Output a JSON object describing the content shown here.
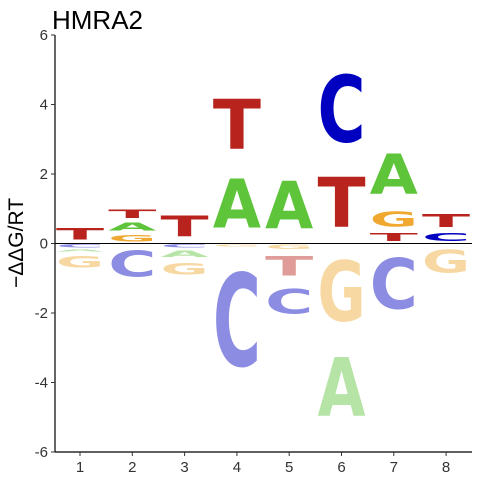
{
  "chart_data": {
    "type": "sequence-logo",
    "title": "HMRA2",
    "xlabel": "",
    "ylabel": "−ΔΔG/RT",
    "ylim": [
      -6,
      6
    ],
    "y_ticks": [
      "-6",
      "-4",
      "-2",
      "0",
      "2",
      "4",
      "6"
    ],
    "x_ticks": [
      "1",
      "2",
      "3",
      "4",
      "5",
      "6",
      "7",
      "8"
    ],
    "grid": false,
    "colors": {
      "A": "#5ec43a",
      "C": "#0000c0",
      "G": "#f0a830",
      "T": "#b8231d"
    },
    "positions": [
      {
        "pos": 1,
        "positive": [
          {
            "base": "T",
            "value": 0.55
          }
        ],
        "negative": [
          {
            "base": "C",
            "value": -0.15
          },
          {
            "base": "A",
            "value": -0.1
          },
          {
            "base": "G",
            "value": -0.55
          }
        ]
      },
      {
        "pos": 2,
        "positive": [
          {
            "base": "G",
            "value": 0.3
          },
          {
            "base": "A",
            "value": 0.35
          },
          {
            "base": "T",
            "value": 0.4
          }
        ],
        "negative": [
          {
            "base": "C",
            "value": -1.2
          }
        ]
      },
      {
        "pos": 3,
        "positive": [
          {
            "base": "T",
            "value": 0.95
          }
        ],
        "negative": [
          {
            "base": "C",
            "value": -0.15
          },
          {
            "base": "A",
            "value": -0.3
          },
          {
            "base": "G",
            "value": -0.55
          }
        ]
      },
      {
        "pos": 4,
        "positive": [
          {
            "base": "A",
            "value": 2.25
          },
          {
            "base": "T",
            "value": 2.3
          }
        ],
        "negative": [
          {
            "base": "G",
            "value": -0.1
          },
          {
            "base": "C",
            "value": -4.3
          }
        ]
      },
      {
        "pos": 5,
        "positive": [
          {
            "base": "A",
            "value": 2.2
          }
        ],
        "negative": [
          {
            "base": "G",
            "value": -0.2
          },
          {
            "base": "T",
            "value": -0.9
          },
          {
            "base": "C",
            "value": -1.15
          }
        ]
      },
      {
        "pos": 6,
        "positive": [
          {
            "base": "T",
            "value": 2.3
          },
          {
            "base": "C",
            "value": 3.1
          }
        ],
        "negative": [
          {
            "base": "G",
            "value": -2.8
          },
          {
            "base": "A",
            "value": -2.7
          }
        ]
      },
      {
        "pos": 7,
        "positive": [
          {
            "base": "T",
            "value": 0.35
          },
          {
            "base": "G",
            "value": 0.7
          },
          {
            "base": "A",
            "value": 1.85
          }
        ],
        "negative": [
          {
            "base": "C",
            "value": -2.35
          }
        ]
      },
      {
        "pos": 8,
        "positive": [
          {
            "base": "C",
            "value": 0.35
          },
          {
            "base": "T",
            "value": 0.6
          }
        ],
        "negative": [
          {
            "base": "G",
            "value": -1.05
          }
        ]
      }
    ]
  }
}
